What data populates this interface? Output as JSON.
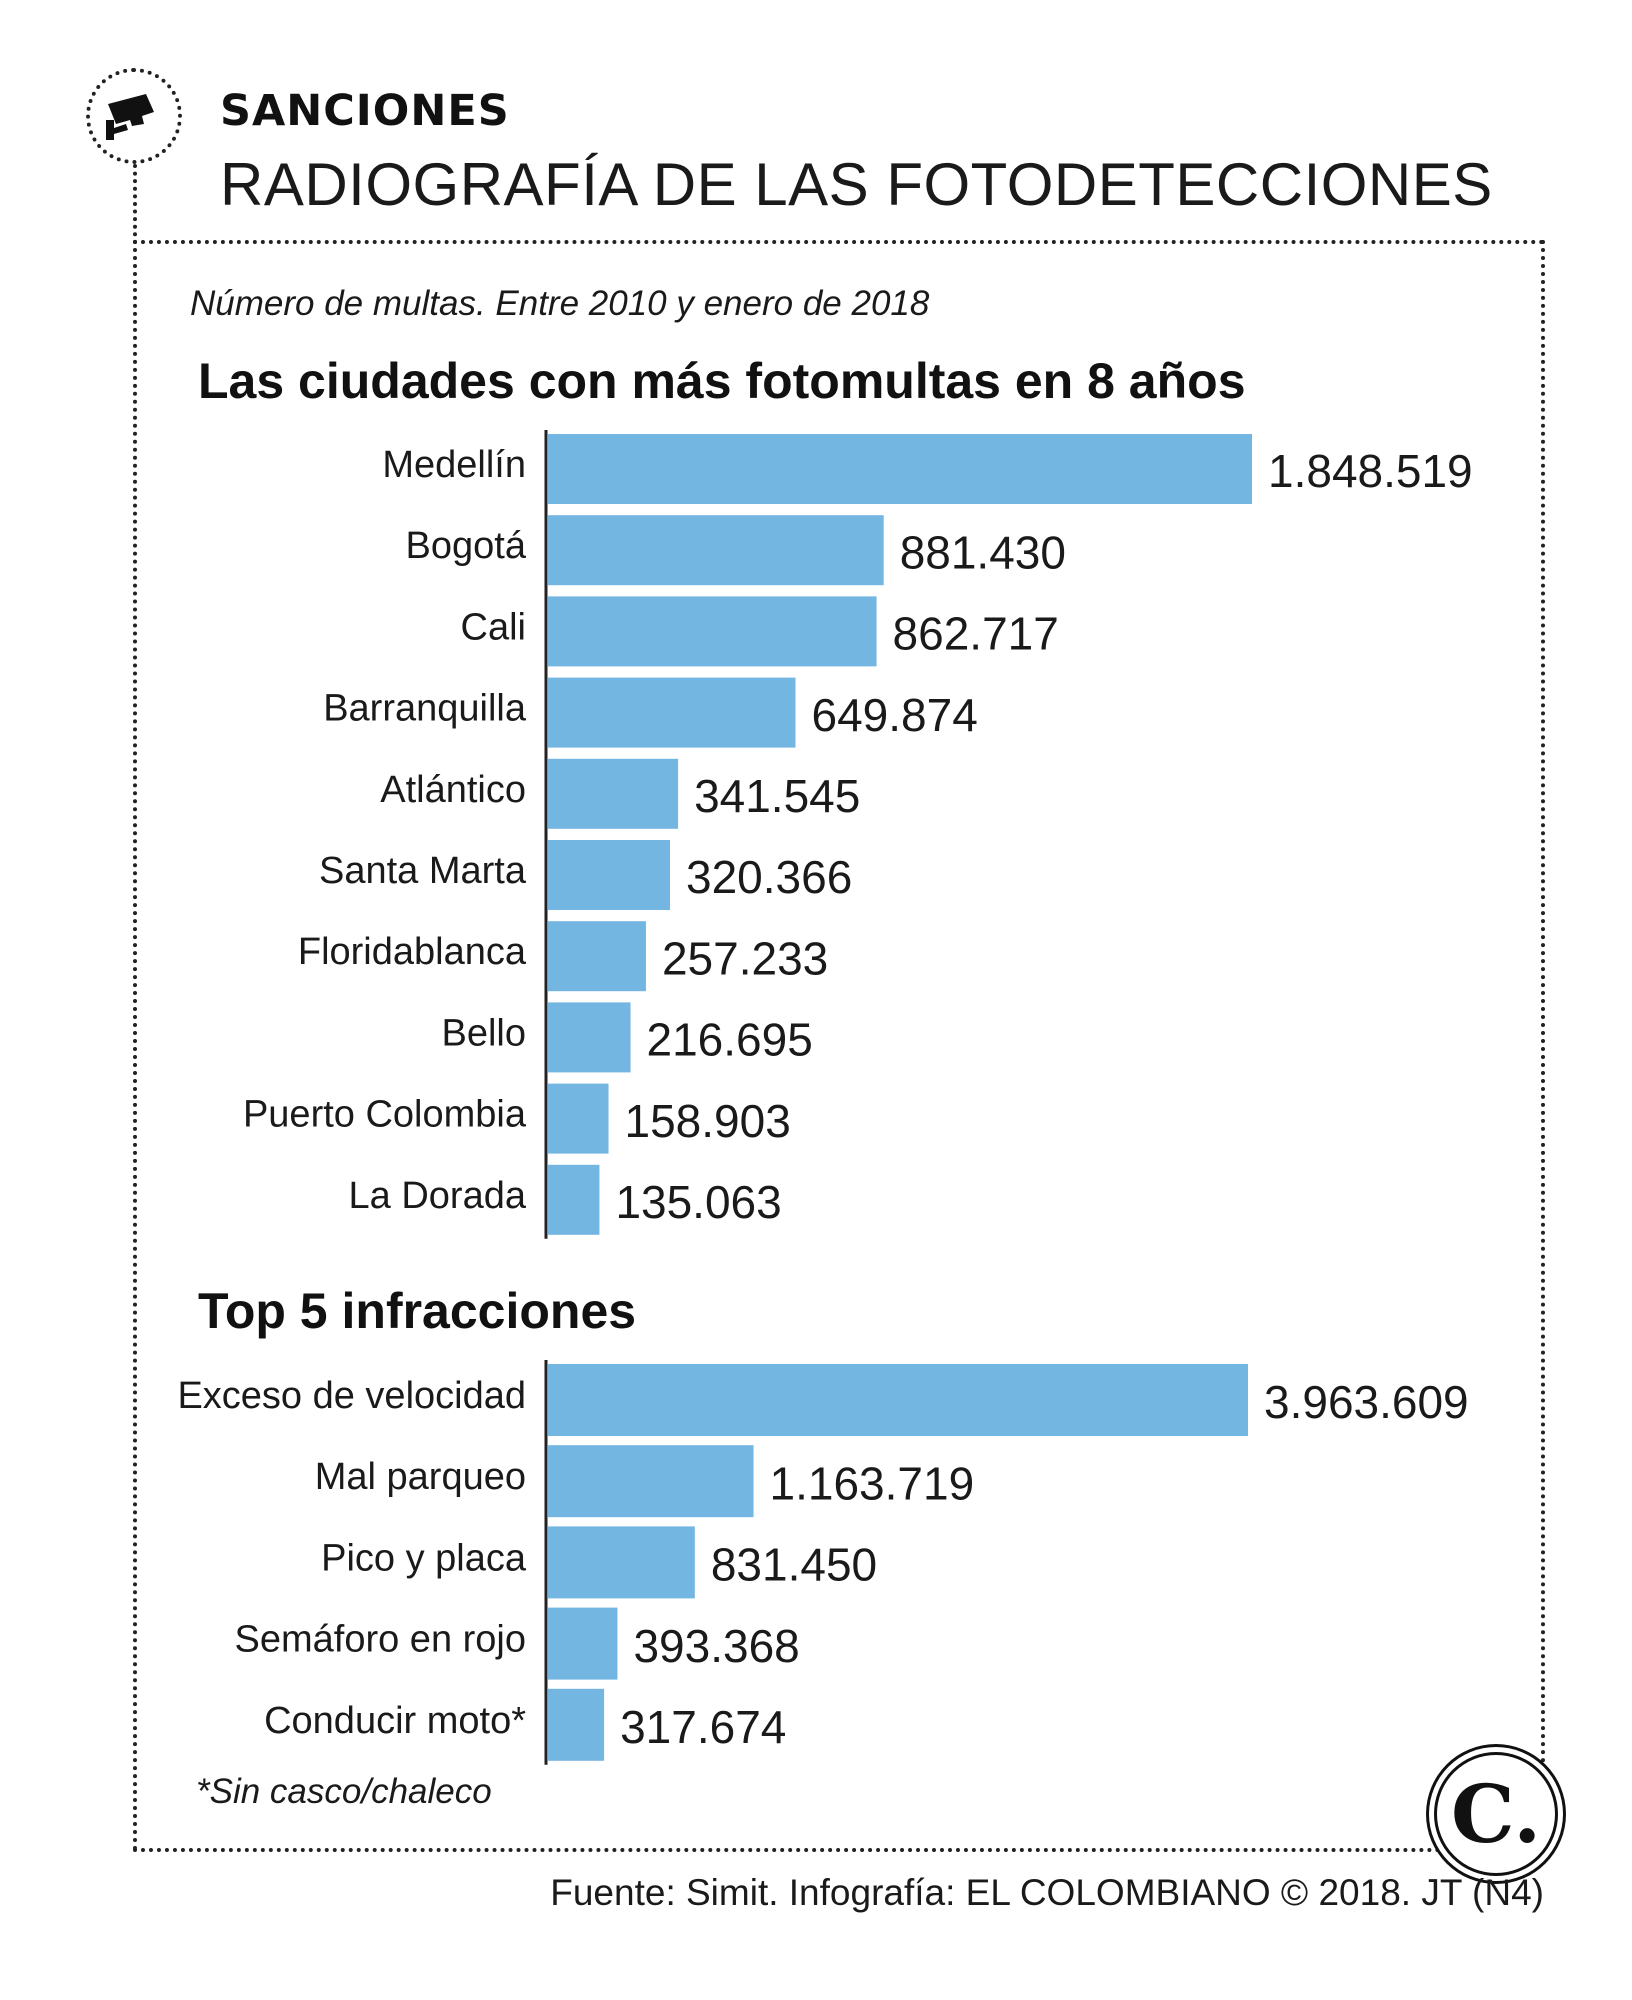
{
  "header": {
    "kicker": "SANCIONES",
    "headline": "RADIOGRAFÍA DE LAS FOTODETECCIONES",
    "icon": "traffic-camera-icon"
  },
  "subtitle": "Número de multas. Entre 2010 y enero de 2018",
  "footnote": "*Sin casco/chaleco",
  "logo": {
    "letter": "C."
  },
  "source": "Fuente: Simit. Infografía: EL COLOMBIANO © 2018. JT (N4)",
  "colors": {
    "bar": "#74b6e2",
    "axis": "#222222",
    "text": "#1a1a1a"
  },
  "chart_data": [
    {
      "type": "bar",
      "orientation": "horizontal",
      "title": "Las ciudades con más fotomultas en 8 años",
      "categories": [
        "Medellín",
        "Bogotá",
        "Cali",
        "Barranquilla",
        "Atlántico",
        "Santa Marta",
        "Floridablanca",
        "Bello",
        "Puerto Colombia",
        "La Dorada"
      ],
      "values": [
        1848519,
        881430,
        862717,
        649874,
        341545,
        320366,
        257233,
        216695,
        158903,
        135063
      ],
      "value_labels": [
        "1.848.519",
        "881.430",
        "862.717",
        "649.874",
        "341.545",
        "320.366",
        "257.233",
        "216.695",
        "158.903",
        "135.063"
      ],
      "xlim": [
        0,
        1848519
      ],
      "grid": false,
      "xlabel": "",
      "ylabel": ""
    },
    {
      "type": "bar",
      "orientation": "horizontal",
      "title": "Top 5 infracciones",
      "categories": [
        "Exceso de velocidad",
        "Mal parqueo",
        "Pico y placa",
        "Semáforo en rojo",
        "Conducir moto*"
      ],
      "values": [
        3963609,
        1163719,
        831450,
        393368,
        317674
      ],
      "value_labels": [
        "3.963.609",
        "1.163.719",
        "831.450",
        "393.368",
        "317.674"
      ],
      "xlim": [
        0,
        3963609
      ],
      "grid": false,
      "xlabel": "",
      "ylabel": ""
    }
  ]
}
